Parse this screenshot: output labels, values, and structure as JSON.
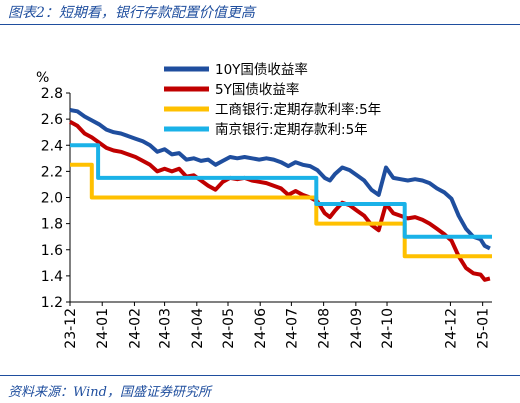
{
  "caption": "图表2：短期看，银行存款配置价值更高",
  "source": "资料来源：Wind，国盛证券研究所",
  "chart_data": {
    "type": "line",
    "yunit": "%",
    "ylim": [
      1.2,
      2.8
    ],
    "yticks": [
      "2.8",
      "2.6",
      "2.4",
      "2.2",
      "2.0",
      "1.8",
      "1.6",
      "1.4",
      "1.2"
    ],
    "xlim": [
      "2023-12-01",
      "2025-01-10"
    ],
    "xticks": [
      {
        "label": "23-12",
        "date": "2023-12-01"
      },
      {
        "label": "24-01",
        "date": "2024-01-01"
      },
      {
        "label": "24-02",
        "date": "2024-02-01"
      },
      {
        "label": "24-03",
        "date": "2024-03-01"
      },
      {
        "label": "24-04",
        "date": "2024-04-01"
      },
      {
        "label": "24-05",
        "date": "2024-05-01"
      },
      {
        "label": "24-06",
        "date": "2024-06-01"
      },
      {
        "label": "24-07",
        "date": "2024-07-01"
      },
      {
        "label": "24-08",
        "date": "2024-08-01"
      },
      {
        "label": "24-09",
        "date": "2024-09-01"
      },
      {
        "label": "24-10",
        "date": "2024-10-01"
      },
      {
        "label": "24-12",
        "date": "2024-12-01"
      },
      {
        "label": "25-01",
        "date": "2025-01-01"
      }
    ],
    "grid": false,
    "legend": "top-right",
    "series": [
      {
        "name": "10Y国债收益率",
        "color": "#1f4e9e",
        "step": false,
        "points": [
          [
            "2023-12-01",
            2.67
          ],
          [
            "2023-12-08",
            2.66
          ],
          [
            "2023-12-15",
            2.62
          ],
          [
            "2023-12-22",
            2.59
          ],
          [
            "2023-12-29",
            2.56
          ],
          [
            "2024-01-05",
            2.52
          ],
          [
            "2024-01-12",
            2.5
          ],
          [
            "2024-01-19",
            2.49
          ],
          [
            "2024-01-26",
            2.47
          ],
          [
            "2024-02-02",
            2.45
          ],
          [
            "2024-02-09",
            2.43
          ],
          [
            "2024-02-16",
            2.4
          ],
          [
            "2024-02-23",
            2.35
          ],
          [
            "2024-03-01",
            2.37
          ],
          [
            "2024-03-08",
            2.33
          ],
          [
            "2024-03-15",
            2.34
          ],
          [
            "2024-03-22",
            2.29
          ],
          [
            "2024-03-29",
            2.3
          ],
          [
            "2024-04-05",
            2.28
          ],
          [
            "2024-04-12",
            2.29
          ],
          [
            "2024-04-19",
            2.25
          ],
          [
            "2024-04-26",
            2.28
          ],
          [
            "2024-05-03",
            2.31
          ],
          [
            "2024-05-10",
            2.3
          ],
          [
            "2024-05-17",
            2.31
          ],
          [
            "2024-05-24",
            2.3
          ],
          [
            "2024-05-31",
            2.29
          ],
          [
            "2024-06-07",
            2.3
          ],
          [
            "2024-06-14",
            2.29
          ],
          [
            "2024-06-21",
            2.27
          ],
          [
            "2024-06-28",
            2.24
          ],
          [
            "2024-07-05",
            2.27
          ],
          [
            "2024-07-12",
            2.25
          ],
          [
            "2024-07-19",
            2.24
          ],
          [
            "2024-07-26",
            2.21
          ],
          [
            "2024-08-02",
            2.15
          ],
          [
            "2024-08-07",
            2.13
          ],
          [
            "2024-08-12",
            2.18
          ],
          [
            "2024-08-19",
            2.23
          ],
          [
            "2024-08-26",
            2.21
          ],
          [
            "2024-09-02",
            2.17
          ],
          [
            "2024-09-09",
            2.13
          ],
          [
            "2024-09-16",
            2.06
          ],
          [
            "2024-09-23",
            2.02
          ],
          [
            "2024-09-30",
            2.23
          ],
          [
            "2024-10-07",
            2.15
          ],
          [
            "2024-10-14",
            2.14
          ],
          [
            "2024-10-21",
            2.13
          ],
          [
            "2024-10-28",
            2.14
          ],
          [
            "2024-11-04",
            2.13
          ],
          [
            "2024-11-11",
            2.11
          ],
          [
            "2024-11-18",
            2.07
          ],
          [
            "2024-11-25",
            2.04
          ],
          [
            "2024-12-02",
            1.99
          ],
          [
            "2024-12-09",
            1.86
          ],
          [
            "2024-12-16",
            1.76
          ],
          [
            "2024-12-23",
            1.7
          ],
          [
            "2024-12-30",
            1.68
          ],
          [
            "2025-01-03",
            1.63
          ],
          [
            "2025-01-08",
            1.61
          ]
        ]
      },
      {
        "name": "5Y国债收益率",
        "color": "#c00000",
        "step": false,
        "points": [
          [
            "2023-12-01",
            2.58
          ],
          [
            "2023-12-08",
            2.55
          ],
          [
            "2023-12-15",
            2.49
          ],
          [
            "2023-12-22",
            2.46
          ],
          [
            "2023-12-29",
            2.42
          ],
          [
            "2024-01-05",
            2.38
          ],
          [
            "2024-01-12",
            2.36
          ],
          [
            "2024-01-19",
            2.35
          ],
          [
            "2024-01-26",
            2.33
          ],
          [
            "2024-02-02",
            2.31
          ],
          [
            "2024-02-09",
            2.28
          ],
          [
            "2024-02-16",
            2.25
          ],
          [
            "2024-02-23",
            2.2
          ],
          [
            "2024-03-01",
            2.22
          ],
          [
            "2024-03-08",
            2.2
          ],
          [
            "2024-03-15",
            2.22
          ],
          [
            "2024-03-22",
            2.16
          ],
          [
            "2024-03-29",
            2.17
          ],
          [
            "2024-04-05",
            2.13
          ],
          [
            "2024-04-12",
            2.09
          ],
          [
            "2024-04-19",
            2.06
          ],
          [
            "2024-04-26",
            2.12
          ],
          [
            "2024-05-03",
            2.15
          ],
          [
            "2024-05-10",
            2.14
          ],
          [
            "2024-05-17",
            2.15
          ],
          [
            "2024-05-24",
            2.13
          ],
          [
            "2024-05-31",
            2.12
          ],
          [
            "2024-06-07",
            2.11
          ],
          [
            "2024-06-14",
            2.09
          ],
          [
            "2024-06-21",
            2.07
          ],
          [
            "2024-06-28",
            2.02
          ],
          [
            "2024-07-05",
            2.05
          ],
          [
            "2024-07-12",
            2.02
          ],
          [
            "2024-07-19",
            2.0
          ],
          [
            "2024-07-26",
            1.97
          ],
          [
            "2024-08-02",
            1.88
          ],
          [
            "2024-08-07",
            1.85
          ],
          [
            "2024-08-12",
            1.9
          ],
          [
            "2024-08-19",
            1.96
          ],
          [
            "2024-08-26",
            1.94
          ],
          [
            "2024-09-02",
            1.9
          ],
          [
            "2024-09-09",
            1.86
          ],
          [
            "2024-09-16",
            1.79
          ],
          [
            "2024-09-23",
            1.75
          ],
          [
            "2024-09-30",
            1.95
          ],
          [
            "2024-10-07",
            1.88
          ],
          [
            "2024-10-14",
            1.86
          ],
          [
            "2024-10-21",
            1.84
          ],
          [
            "2024-10-28",
            1.85
          ],
          [
            "2024-11-04",
            1.83
          ],
          [
            "2024-11-11",
            1.8
          ],
          [
            "2024-11-18",
            1.76
          ],
          [
            "2024-11-25",
            1.72
          ],
          [
            "2024-12-02",
            1.67
          ],
          [
            "2024-12-09",
            1.55
          ],
          [
            "2024-12-16",
            1.46
          ],
          [
            "2024-12-23",
            1.42
          ],
          [
            "2024-12-30",
            1.41
          ],
          [
            "2025-01-03",
            1.37
          ],
          [
            "2025-01-08",
            1.38
          ]
        ]
      },
      {
        "name": "工商银行:定期存款利率:5年",
        "color": "#ffc000",
        "step": true,
        "points": [
          [
            "2023-12-01",
            2.25
          ],
          [
            "2023-12-22",
            2.0
          ],
          [
            "2024-07-25",
            1.8
          ],
          [
            "2024-10-18",
            1.55
          ],
          [
            "2025-01-10",
            1.55
          ]
        ]
      },
      {
        "name": "南京银行:定期存款利:5年",
        "color": "#1ab2e8",
        "step": true,
        "points": [
          [
            "2023-12-01",
            2.4
          ],
          [
            "2023-12-28",
            2.15
          ],
          [
            "2024-07-25",
            1.95
          ],
          [
            "2024-10-18",
            1.7
          ],
          [
            "2025-01-10",
            1.7
          ]
        ]
      }
    ]
  }
}
